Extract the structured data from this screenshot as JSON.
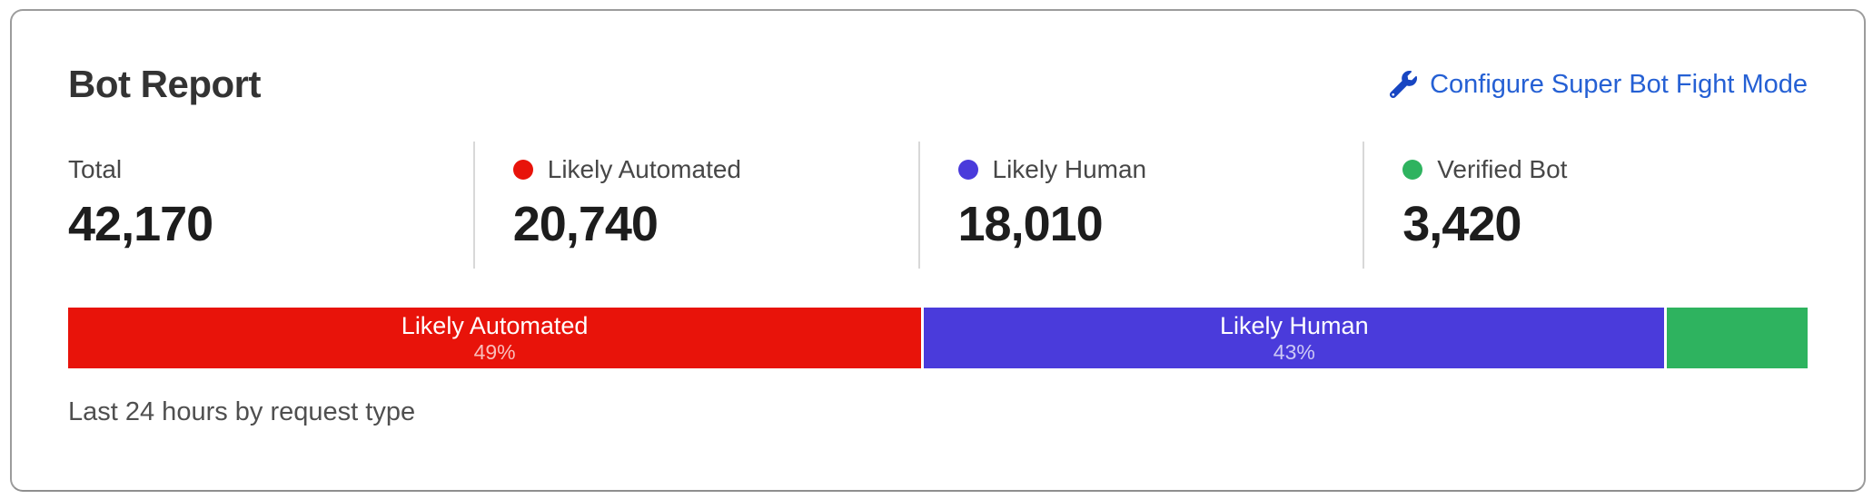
{
  "card": {
    "title": "Bot Report",
    "configure_link": "Configure Super Bot Fight Mode",
    "stats": [
      {
        "label": "Total",
        "value": "42,170"
      },
      {
        "label": "Likely Automated",
        "value": "20,740"
      },
      {
        "label": "Likely Human",
        "value": "18,010"
      },
      {
        "label": "Verified Bot",
        "value": "3,420"
      }
    ],
    "caption": "Last 24 hours by request type"
  },
  "colors": {
    "link_text": "#2560d4",
    "wrench_icon": "#1745c2",
    "likely_automated": "#e8130a",
    "likely_human": "#4a3bdb",
    "verified_bot": "#2eb35f"
  },
  "chart_data": {
    "type": "bar",
    "title": "Bot Report",
    "subtitle": "Last 24 hours by request type",
    "stacked": true,
    "orientation": "horizontal",
    "total": 42170,
    "legend_position": "top-stats-row",
    "segments": [
      {
        "label": "Likely Automated",
        "value": 20740,
        "percent_label": "49%",
        "share_pct": 49.2,
        "color": "#e8130a",
        "bar_text_visible": true
      },
      {
        "label": "Likely Human",
        "value": 18010,
        "percent_label": "43%",
        "share_pct": 42.7,
        "color": "#4a3bdb",
        "bar_text_visible": true
      },
      {
        "label": "Verified Bot",
        "value": 3420,
        "percent_label": "",
        "share_pct": 8.1,
        "color": "#2eb35f",
        "bar_text_visible": false
      }
    ]
  }
}
